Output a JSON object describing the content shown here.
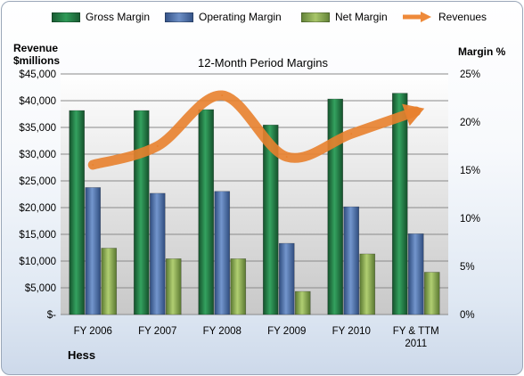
{
  "company": "Hess",
  "colors": {
    "gross_margin": "#217a45",
    "operating_margin": "#4a6fab",
    "net_margin": "#86a84a",
    "revenues": "#ee8a3a"
  },
  "chart_data": {
    "type": "bar",
    "title": "12-Month Period Margins",
    "ylabel_left": "Revenue $millions",
    "ylabel_right": "Margin %",
    "categories": [
      "FY 2006",
      "FY 2007",
      "FY 2008",
      "FY 2009",
      "FY 2010",
      "FY & TTM 2011"
    ],
    "ylim_left": [
      0,
      45000
    ],
    "ylim_right": [
      0,
      25
    ],
    "left_ticks": [
      "$-",
      "$5,000",
      "$10,000",
      "$15,000",
      "$20,000",
      "$25,000",
      "$30,000",
      "$35,000",
      "$40,000",
      "$45,000"
    ],
    "right_ticks": [
      "0%",
      "5%",
      "10%",
      "15%",
      "20%",
      "25%"
    ],
    "grid": true,
    "legend_position": "top",
    "series": [
      {
        "name": "Gross Margin",
        "axis": "right",
        "kind": "bar",
        "values": [
          21.2,
          21.2,
          21.3,
          19.7,
          22.4,
          23.0
        ]
      },
      {
        "name": "Operating Margin",
        "axis": "right",
        "kind": "bar",
        "values": [
          13.2,
          12.6,
          12.8,
          7.4,
          11.2,
          8.4
        ]
      },
      {
        "name": "Net Margin",
        "axis": "right",
        "kind": "bar",
        "values": [
          6.9,
          5.8,
          5.8,
          2.4,
          6.3,
          4.4
        ]
      },
      {
        "name": "Revenues",
        "axis": "left",
        "kind": "line",
        "values": [
          28000,
          31500,
          41000,
          29500,
          33800,
          38000
        ]
      }
    ]
  }
}
